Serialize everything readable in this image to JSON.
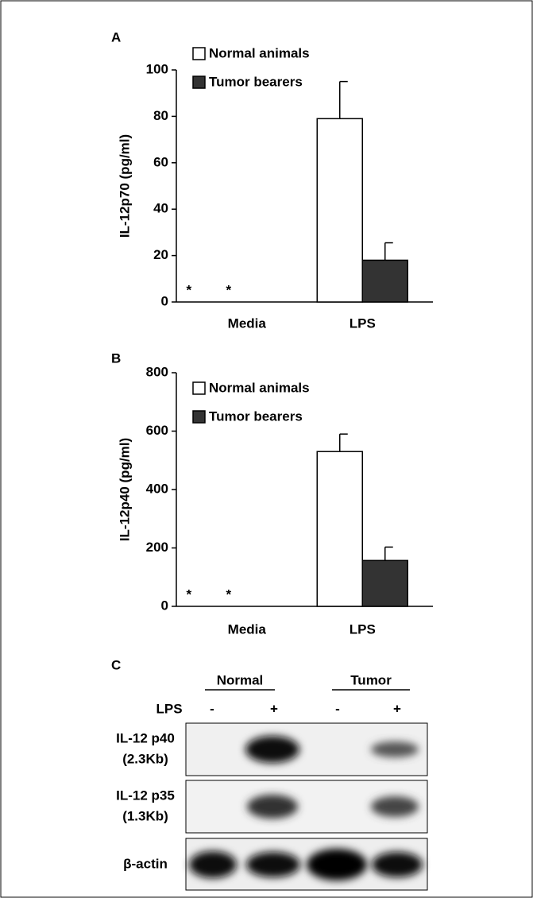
{
  "chart_data": [
    {
      "type": "bar",
      "panel": "A",
      "y_label": "IL-12p70 (pg/ml)",
      "categories": [
        "Media",
        "LPS"
      ],
      "series": [
        {
          "name": "Normal animals",
          "color": "#ffffff",
          "values": [
            null,
            79
          ],
          "errors": [
            null,
            16
          ],
          "value_labels": [
            "*",
            null
          ]
        },
        {
          "name": "Tumor bearers",
          "color": "#333333",
          "values": [
            null,
            18
          ],
          "errors": [
            null,
            7.5
          ],
          "value_labels": [
            "*",
            null
          ]
        }
      ],
      "ylim": [
        0,
        100
      ],
      "yticks": [
        0,
        20,
        40,
        60,
        80,
        100
      ],
      "grid": false,
      "legend": "upper left"
    },
    {
      "type": "bar",
      "panel": "B",
      "y_label": "IL-12p40 (pg/ml)",
      "categories": [
        "Media",
        "LPS"
      ],
      "series": [
        {
          "name": "Normal animals",
          "color": "#ffffff",
          "values": [
            null,
            530
          ],
          "errors": [
            null,
            60
          ],
          "value_labels": [
            "*",
            null
          ]
        },
        {
          "name": "Tumor bearers",
          "color": "#333333",
          "values": [
            null,
            157
          ],
          "errors": [
            null,
            46
          ],
          "value_labels": [
            "*",
            null
          ]
        }
      ],
      "ylim": [
        0,
        800
      ],
      "yticks": [
        0,
        200,
        400,
        600,
        800
      ],
      "grid": false,
      "legend": "upper left"
    }
  ],
  "blot": {
    "panel": "C",
    "groups": [
      "Normal",
      "Tumor"
    ],
    "lps_label": "LPS",
    "lanes": [
      "-",
      "+",
      "-",
      "+"
    ],
    "rows": [
      [
        "IL-12 p40",
        "(2.3Kb)"
      ],
      [
        "IL-12 p35",
        "(1.3Kb)"
      ],
      [
        "β-actin"
      ]
    ]
  }
}
